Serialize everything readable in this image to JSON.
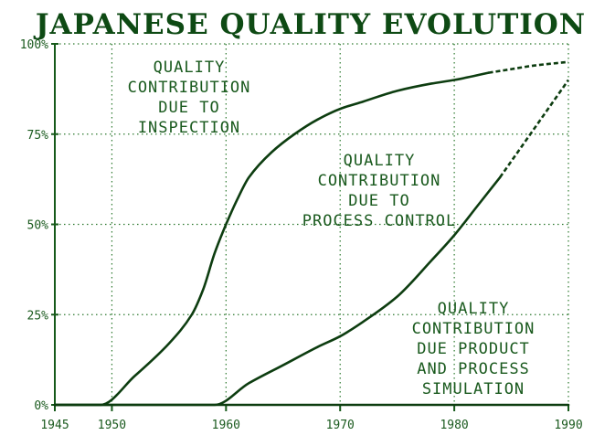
{
  "chart_data": {
    "type": "line",
    "title": "JAPANESE QUALITY EVOLUTION",
    "xlim": [
      1945,
      1990
    ],
    "ylim": [
      0,
      100
    ],
    "x_ticks": [
      1945,
      1950,
      1960,
      1970,
      1980,
      1990
    ],
    "x_tick_labels": [
      "1945",
      "1950",
      "1960",
      "1970",
      "1980",
      "1990"
    ],
    "y_ticks": [
      0,
      25,
      50,
      75,
      100
    ],
    "y_tick_labels": [
      "0%",
      "25%",
      "50%",
      "75%",
      "100%"
    ],
    "grid": true,
    "series": [
      {
        "x": [
          1945,
          1949,
          1952,
          1955,
          1957,
          1958,
          1959,
          1960,
          1961,
          1962,
          1964,
          1966,
          1968,
          1970,
          1972,
          1975,
          1978,
          1980,
          1983,
          1985,
          1987,
          1990
        ],
        "y": [
          0,
          0,
          8,
          17,
          25,
          32,
          42,
          50,
          57,
          63,
          70,
          75,
          79,
          82,
          84,
          87,
          89,
          90,
          92,
          93,
          94,
          95
        ]
      },
      {
        "x": [
          1945,
          1959,
          1962,
          1965,
          1968,
          1970,
          1972,
          1975,
          1978,
          1980,
          1982,
          1984,
          1986,
          1988,
          1990
        ],
        "y": [
          0,
          0,
          6,
          11,
          16,
          19,
          23,
          30,
          40,
          47,
          55,
          63,
          72,
          81,
          90
        ]
      },
      {
        "x": [
          1945,
          1990
        ],
        "y": [
          0,
          0
        ]
      }
    ],
    "annotations": [
      {
        "lines": [
          "QUALITY",
          "CONTRIBUTION",
          "DUE TO",
          "INSPECTION"
        ]
      },
      {
        "lines": [
          "QUALITY",
          "CONTRIBUTION",
          "DUE TO",
          "PROCESS CONTROL"
        ]
      },
      {
        "lines": [
          "QUALITY",
          "CONTRIBUTION",
          "DUE PRODUCT",
          "AND PROCESS",
          "SIMULATION"
        ]
      }
    ]
  }
}
